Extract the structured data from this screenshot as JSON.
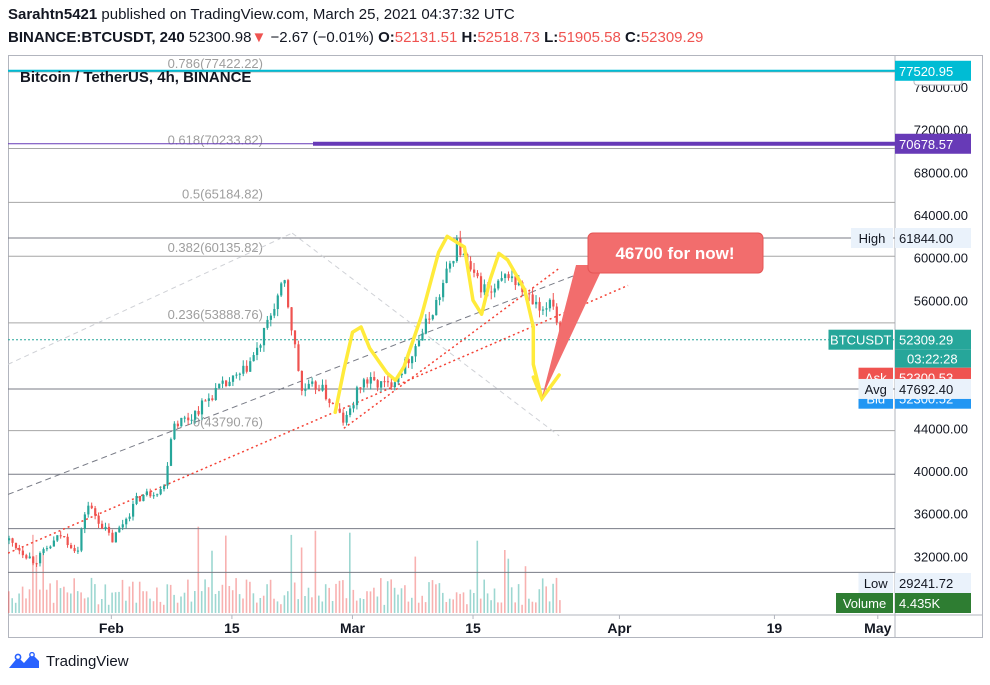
{
  "header": {
    "author": "Sarahtn5421",
    "published_text": "published on TradingView.com, March 25, 2021 04:37:32 UTC",
    "symbol": "BINANCE:BTCUSDT, 240",
    "last": "52300.98",
    "change": "−2.67 (−0.01%)",
    "open_label": "O:",
    "open": "52131.51",
    "high_label": "H:",
    "high": "52518.73",
    "low_label": "L:",
    "low": "51905.58",
    "close_label": "C:",
    "close": "52309.29"
  },
  "footer": {
    "brand": "TradingView"
  },
  "chart_data": {
    "type": "candlestick",
    "title": "Bitcoin / TetherUS, 4h, BINANCE",
    "currency": "USDT",
    "ylim": [
      26500,
      79000
    ],
    "y_ticks": [
      32000,
      36000,
      40000,
      44000,
      48000,
      52000,
      56000,
      60000,
      64000,
      68000,
      72000,
      76000
    ],
    "y_tick_labels": [
      "32000.00",
      "36000.00",
      "40000.00",
      "44000.00",
      "48000.00",
      "52000.00",
      "56000.00",
      "60000.00",
      "64000.00",
      "68000.00",
      "72000.00",
      "76000.00"
    ],
    "x_ticks": [
      {
        "label": "Feb",
        "date": "2021-02-01"
      },
      {
        "label": "15",
        "date": "2021-02-15"
      },
      {
        "label": "Mar",
        "date": "2021-03-01"
      },
      {
        "label": "15",
        "date": "2021-03-15"
      },
      {
        "label": "Apr",
        "date": "2021-04-01"
      },
      {
        "label": "19",
        "date": "2021-04-19"
      },
      {
        "label": "May",
        "date": "2021-05-01"
      }
    ],
    "xlim": [
      "2021-01-20",
      "2021-05-03"
    ],
    "price_path": [
      [
        "2021-01-20",
        33500
      ],
      [
        "2021-01-23",
        31500
      ],
      [
        "2021-01-26",
        34000
      ],
      [
        "2021-01-28",
        32500
      ],
      [
        "2021-01-29",
        37000
      ],
      [
        "2021-02-01",
        33500
      ],
      [
        "2021-02-04",
        37500
      ],
      [
        "2021-02-07",
        38500
      ],
      [
        "2021-02-08",
        44500
      ],
      [
        "2021-02-10",
        45000
      ],
      [
        "2021-02-13",
        47500
      ],
      [
        "2021-02-16",
        49000
      ],
      [
        "2021-02-18",
        51500
      ],
      [
        "2021-02-20",
        56000
      ],
      [
        "2021-02-21",
        57500
      ],
      [
        "2021-02-22",
        52500
      ],
      [
        "2021-02-23",
        47500
      ],
      [
        "2021-02-25",
        48000
      ],
      [
        "2021-02-28",
        44500
      ],
      [
        "2021-03-02",
        48500
      ],
      [
        "2021-03-05",
        48000
      ],
      [
        "2021-03-07",
        50000
      ],
      [
        "2021-03-09",
        53000
      ],
      [
        "2021-03-11",
        56500
      ],
      [
        "2021-03-13",
        61300
      ],
      [
        "2021-03-15",
        58000
      ],
      [
        "2021-03-17",
        56500
      ],
      [
        "2021-03-19",
        58500
      ],
      [
        "2021-03-21",
        56500
      ],
      [
        "2021-03-23",
        54500
      ],
      [
        "2021-03-24",
        56700
      ],
      [
        "2021-03-25",
        52300
      ]
    ],
    "fib_levels": [
      {
        "label": "0.786(77422.22)",
        "value": 77422.22
      },
      {
        "label": "0.618(70233.82)",
        "value": 70233.82
      },
      {
        "label": "0.5(65184.82)",
        "value": 65184.82
      },
      {
        "label": "0.382(60135.82)",
        "value": 60135.82
      },
      {
        "label": "0.236(53888.76)",
        "value": 53888.76
      },
      {
        "label": "0(43790.76)",
        "value": 43790.76
      }
    ],
    "horizontal_lines": [
      77520.95,
      70678.57,
      61844.0,
      52309.29,
      47692.4,
      39700,
      34600,
      30500
    ],
    "price_labels": [
      {
        "name": "",
        "value": "77520.95",
        "color": "#00bcd4"
      },
      {
        "name": "",
        "value": "70678.57",
        "color": "#673ab7"
      },
      {
        "name": "High",
        "value": "61844.00",
        "color": "#e3f2fd"
      },
      {
        "name": "BTCUSDT",
        "value": "52309.29",
        "extra": "03:22:28",
        "color": "#26a69a"
      },
      {
        "name": "Ask",
        "value": "52300.53",
        "color": "#ef5350"
      },
      {
        "name": "Bid",
        "value": "52300.52",
        "color": "#2196f3"
      },
      {
        "name": "Avg",
        "value": "47692.40",
        "color": "#e3f2fd"
      },
      {
        "name": "Low",
        "value": "29241.72",
        "color": "#e3f2fd"
      },
      {
        "name": "Volume",
        "value": "4.435K",
        "color": "#2e7d32"
      }
    ],
    "annotation": {
      "text": "46700 for now!",
      "color": "#f26d6d"
    },
    "colors": {
      "up": "#26a69a",
      "down": "#ef5350",
      "yellow_path": "#ffeb3b",
      "fib": "#9e9e9e",
      "purple": "#673ab7",
      "cyan": "#00bcd4"
    }
  }
}
